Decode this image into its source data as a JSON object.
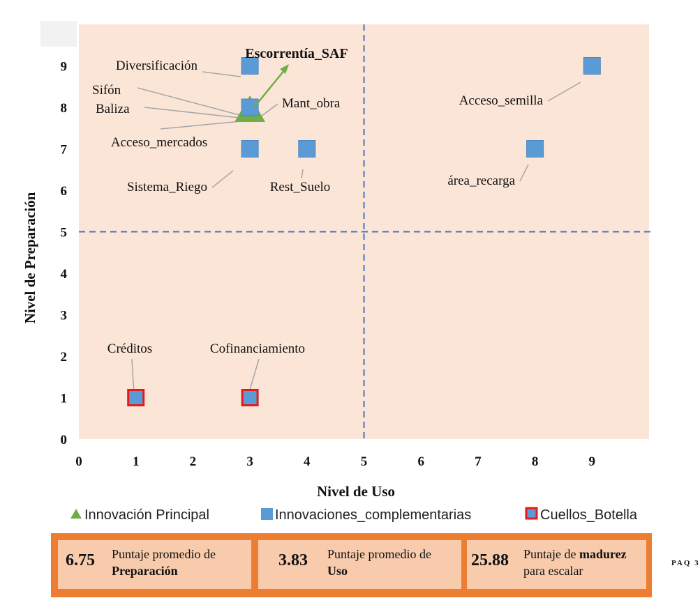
{
  "chart_data": {
    "type": "scatter",
    "title": "",
    "xlabel": "Nivel de Uso",
    "ylabel": "Nivel de Preparación",
    "xlim": [
      0,
      10
    ],
    "ylim": [
      0,
      10
    ],
    "x_ticks": [
      0,
      1,
      2,
      3,
      4,
      5,
      6,
      7,
      8,
      9
    ],
    "y_ticks": [
      0,
      1,
      2,
      3,
      4,
      5,
      6,
      7,
      8,
      9
    ],
    "reference_lines": {
      "x": 5,
      "y": 5,
      "style": "dashed",
      "color": "#4472c4"
    },
    "grid": false,
    "background_color": "#fbe5d6",
    "legend_placement": "bottom",
    "series": [
      {
        "name": "Innovación Principal",
        "marker": "triangle",
        "color": "#70ad47",
        "points": [
          {
            "label": "Escorrentía_SAF",
            "x": 3,
            "y": 7.9
          }
        ]
      },
      {
        "name": "Innovaciones_complementarias",
        "marker": "square",
        "color": "#5b9bd5",
        "points": [
          {
            "label": "Diversificación",
            "x": 3,
            "y": 9
          },
          {
            "label": "Sifón",
            "x": 3,
            "y": 8
          },
          {
            "label": "Baliza",
            "x": 3,
            "y": 8
          },
          {
            "label": "Acceso_mercados",
            "x": 3,
            "y": 8
          },
          {
            "label": "Mant_obra",
            "x": 3,
            "y": 8
          },
          {
            "label": "Sistema_Riego",
            "x": 3,
            "y": 7
          },
          {
            "label": "Rest_Suelo",
            "x": 4,
            "y": 7
          },
          {
            "label": "Acceso_semilla",
            "x": 9,
            "y": 9
          },
          {
            "label": "área_recarga",
            "x": 8,
            "y": 7
          }
        ]
      },
      {
        "name": "Cuellos_Botella",
        "marker": "square-outlined",
        "color": "#5b9bd5",
        "edge_color": "#e31b1b",
        "points": [
          {
            "label": "Créditos",
            "x": 1,
            "y": 1
          },
          {
            "label": "Cofinanciamiento",
            "x": 3,
            "y": 1
          }
        ]
      }
    ]
  },
  "stats": [
    {
      "value": "6.75",
      "label_line1": "Puntaje promedio de",
      "label_bold": "Preparación",
      "label_line2": ""
    },
    {
      "value": "3.83",
      "label_line1": "Puntaje promedio de",
      "label_bold": "Uso",
      "label_line2": ""
    },
    {
      "value": "25.88",
      "label_line1": "Puntaje de ",
      "label_bold": "madurez",
      "label_line2": "para escalar"
    }
  ],
  "footer_tag": "PAQ 3"
}
